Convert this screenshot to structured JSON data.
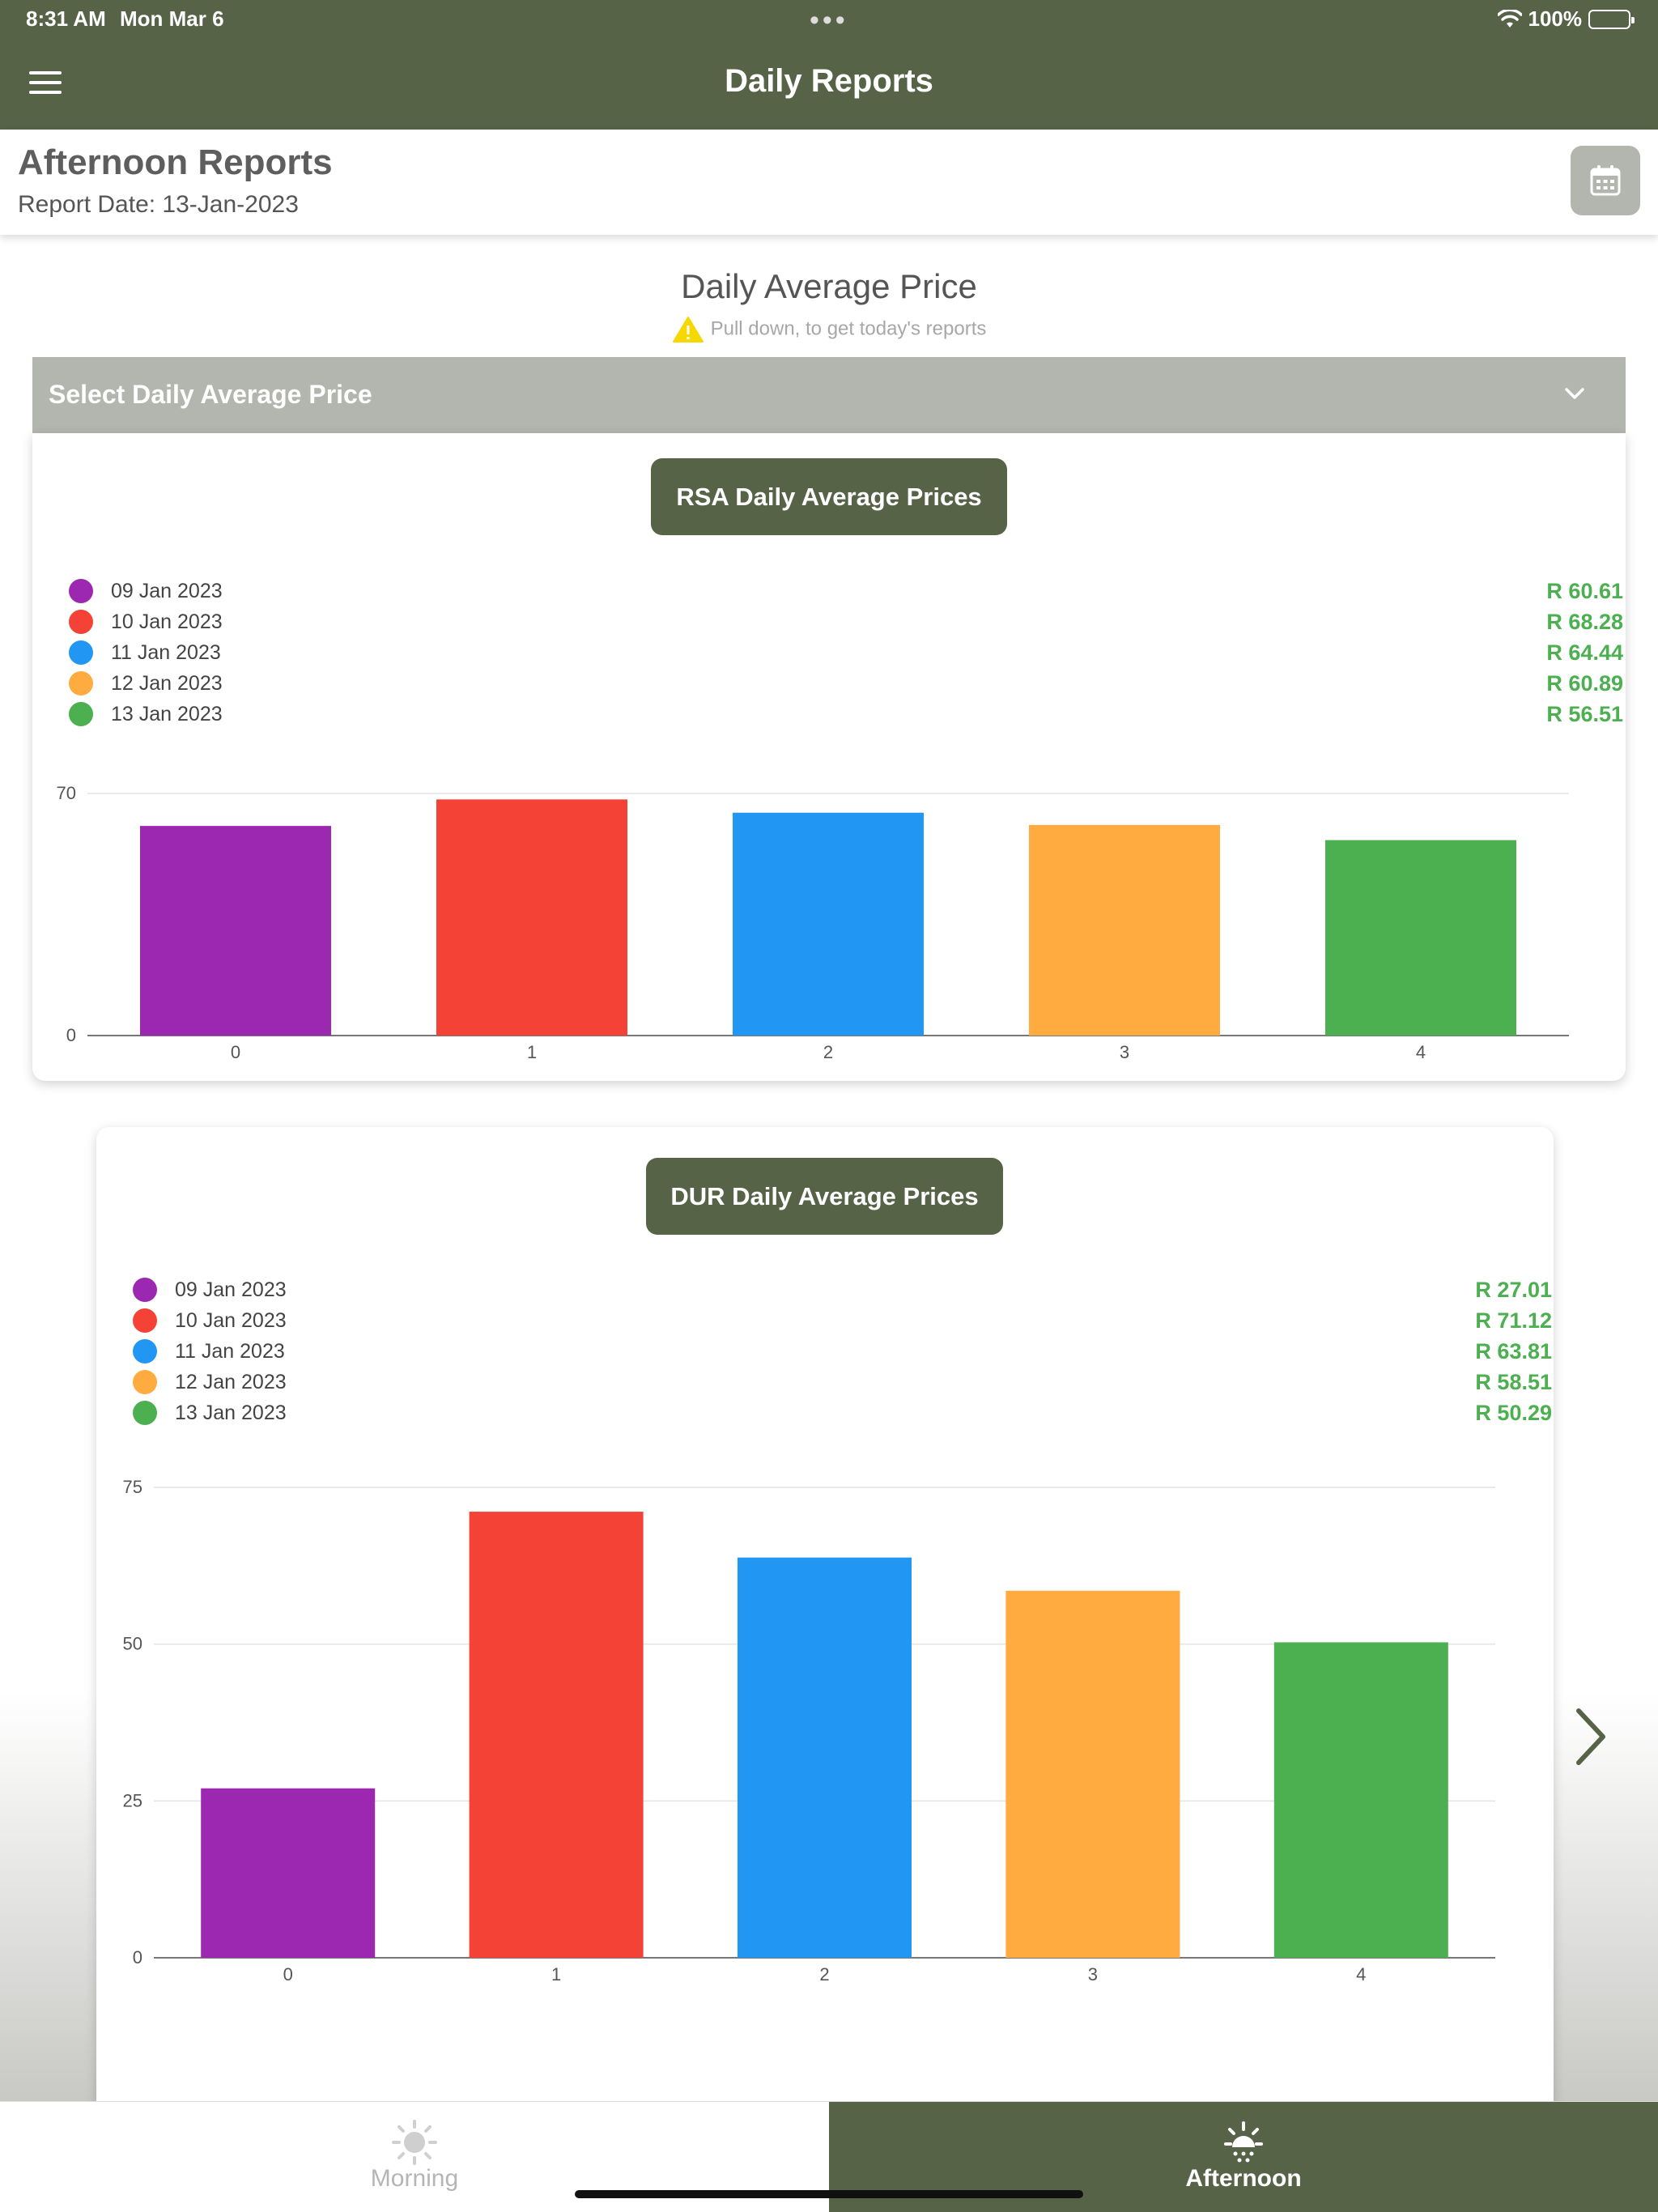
{
  "status_bar": {
    "time": "8:31 AM",
    "date": "Mon Mar 6",
    "battery": "100%"
  },
  "nav": {
    "title": "Daily Reports",
    "menu_icon": "hamburger-icon"
  },
  "header": {
    "title": "Afternoon Reports",
    "report_date": "Report Date: 13-Jan-2023",
    "calendar_icon": "calendar-icon"
  },
  "main": {
    "title": "Daily Average Price",
    "hint": "Pull down, to get today's reports",
    "select_label": "Select Daily Average Price"
  },
  "colors": {
    "primary": "#566347",
    "select_bg": "#b3b6ae",
    "value_green": "#4caf50",
    "series": [
      "#9c27b0",
      "#f44336",
      "#2196f3",
      "#ffab40",
      "#4caf50"
    ]
  },
  "rsa": {
    "button": "RSA Daily Average Prices",
    "legend": [
      {
        "label": "09 Jan 2023",
        "value": "R 60.61"
      },
      {
        "label": "10 Jan 2023",
        "value": "R 68.28"
      },
      {
        "label": "11 Jan 2023",
        "value": "R 64.44"
      },
      {
        "label": "12 Jan 2023",
        "value": "R 60.89"
      },
      {
        "label": "13 Jan 2023",
        "value": "R 56.51"
      }
    ],
    "y_ticks": [
      "0",
      "70"
    ],
    "x_ticks": [
      "0",
      "1",
      "2",
      "3",
      "4"
    ]
  },
  "dur": {
    "button": "DUR Daily Average Prices",
    "legend": [
      {
        "label": "09 Jan 2023",
        "value": "R 27.01"
      },
      {
        "label": "10 Jan 2023",
        "value": "R 71.12"
      },
      {
        "label": "11 Jan 2023",
        "value": "R 63.81"
      },
      {
        "label": "12 Jan 2023",
        "value": "R 58.51"
      },
      {
        "label": "13 Jan 2023",
        "value": "R 50.29"
      }
    ],
    "y_ticks": [
      "0",
      "25",
      "50",
      "75"
    ],
    "x_ticks": [
      "0",
      "1",
      "2",
      "3",
      "4"
    ]
  },
  "chart_data": [
    {
      "type": "bar",
      "title": "RSA Daily Average Prices",
      "categories": [
        "0",
        "1",
        "2",
        "3",
        "4"
      ],
      "values": [
        60.61,
        68.28,
        64.44,
        60.89,
        56.51
      ],
      "series_labels": [
        "09 Jan 2023",
        "10 Jan 2023",
        "11 Jan 2023",
        "12 Jan 2023",
        "13 Jan 2023"
      ],
      "ylim": [
        0,
        70
      ],
      "grid": true,
      "legend": "top-left"
    },
    {
      "type": "bar",
      "title": "DUR Daily Average Prices",
      "categories": [
        "0",
        "1",
        "2",
        "3",
        "4"
      ],
      "values": [
        27.01,
        71.12,
        63.81,
        58.51,
        50.29
      ],
      "series_labels": [
        "09 Jan 2023",
        "10 Jan 2023",
        "11 Jan 2023",
        "12 Jan 2023",
        "13 Jan 2023"
      ],
      "ylim": [
        0,
        75
      ],
      "grid": true,
      "legend": "top-left"
    }
  ],
  "tabs": [
    {
      "label": "Morning",
      "icon": "sun-icon",
      "active": false
    },
    {
      "label": "Afternoon",
      "icon": "sunset-icon",
      "active": true
    }
  ]
}
